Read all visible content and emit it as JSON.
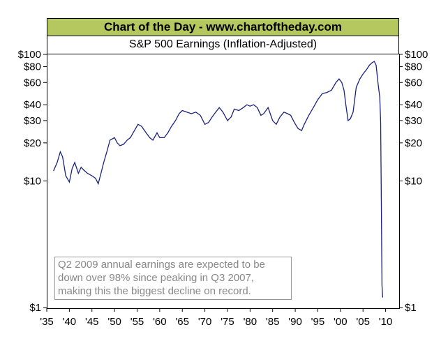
{
  "banner_title": "Chart of the Day - www.chartoftheday.com",
  "chart_data": {
    "type": "line",
    "title": "S&P 500 Earnings (Inflation-Adjusted)",
    "yscale": "log",
    "ylim": [
      1,
      100
    ],
    "xlim": [
      1935,
      2013
    ],
    "y_ticks": [
      {
        "value": 100,
        "label": "$100"
      },
      {
        "value": 80,
        "label": "$80"
      },
      {
        "value": 60,
        "label": "$60"
      },
      {
        "value": 40,
        "label": "$40"
      },
      {
        "value": 30,
        "label": "$30"
      },
      {
        "value": 20,
        "label": "$20"
      },
      {
        "value": 10,
        "label": "$10"
      },
      {
        "value": 1,
        "label": "$1"
      }
    ],
    "x_ticks": [
      {
        "value": 1935,
        "label": "'35"
      },
      {
        "value": 1940,
        "label": "'40"
      },
      {
        "value": 1945,
        "label": "'45"
      },
      {
        "value": 1950,
        "label": "'50"
      },
      {
        "value": 1955,
        "label": "'55"
      },
      {
        "value": 1960,
        "label": "'60"
      },
      {
        "value": 1965,
        "label": "'65"
      },
      {
        "value": 1970,
        "label": "'70"
      },
      {
        "value": 1975,
        "label": "'75"
      },
      {
        "value": 1980,
        "label": "'80"
      },
      {
        "value": 1985,
        "label": "'85"
      },
      {
        "value": 1990,
        "label": "'90"
      },
      {
        "value": 1995,
        "label": "'95"
      },
      {
        "value": 2000,
        "label": "'00"
      },
      {
        "value": 2005,
        "label": "'05"
      },
      {
        "value": 2010,
        "label": "'10"
      }
    ],
    "series": [
      {
        "name": "S&P 500 Earnings (Inflation-Adjusted)",
        "color": "#1a237e",
        "x": [
          1936.5,
          1937.3,
          1938,
          1938.5,
          1939.2,
          1940,
          1940.6,
          1941.2,
          1942,
          1942.6,
          1943.4,
          1944,
          1945,
          1945.8,
          1946.4,
          1947,
          1947.6,
          1948.3,
          1949,
          1950,
          1950.6,
          1951.2,
          1952,
          1952.8,
          1953.5,
          1954.4,
          1955.2,
          1956,
          1957,
          1957.8,
          1958.5,
          1959.4,
          1960,
          1961,
          1961.8,
          1962.6,
          1963.5,
          1964.3,
          1965,
          1966,
          1967,
          1968,
          1969,
          1970,
          1970.8,
          1971.6,
          1972.4,
          1973.2,
          1974,
          1975,
          1975.8,
          1976.5,
          1977.5,
          1978.5,
          1979.3,
          1980,
          1980.8,
          1981.6,
          1982.4,
          1983,
          1984,
          1985,
          1985.8,
          1986.6,
          1987.5,
          1988.3,
          1989,
          1989.8,
          1990.6,
          1991.4,
          1992,
          1993,
          1994,
          1995,
          1996,
          1997,
          1998,
          1999,
          1999.7,
          2000.3,
          2000.8,
          2001.2,
          2001.7,
          2002.2,
          2002.8,
          2003.5,
          2004.3,
          2005,
          2005.8,
          2006.4,
          2007.0,
          2007.5,
          2007.9,
          2008.3,
          2008.7,
          2008.9,
          2009.05,
          2009.2,
          2009.35
        ],
        "y": [
          12,
          14,
          17,
          15.5,
          11,
          9.8,
          12.5,
          14,
          11.5,
          12.8,
          12,
          11.5,
          11,
          10.5,
          9.5,
          11.5,
          14,
          17,
          21,
          22,
          20,
          19,
          19.5,
          21,
          22,
          25,
          28,
          27,
          24,
          22,
          21,
          24,
          22,
          22,
          24,
          27,
          30,
          34,
          36,
          35,
          34,
          35,
          33,
          28,
          29,
          32,
          35,
          38,
          35,
          30,
          32,
          37,
          36,
          38,
          40,
          39,
          40,
          38,
          33,
          34,
          38,
          30,
          28,
          32,
          35,
          34,
          33,
          29,
          26,
          25,
          28,
          33,
          38,
          44,
          49,
          50,
          52,
          60,
          64,
          60,
          52,
          40,
          30,
          31,
          35,
          55,
          64,
          70,
          76,
          82,
          86,
          88,
          82,
          60,
          46,
          29,
          7.5,
          1.5,
          1.2
        ]
      }
    ],
    "note_lines": [
      "Q2 2009 annual earnings are expected to be",
      "down over 98% since peaking in Q3 2007,",
      "making this the biggest decline on record."
    ]
  }
}
